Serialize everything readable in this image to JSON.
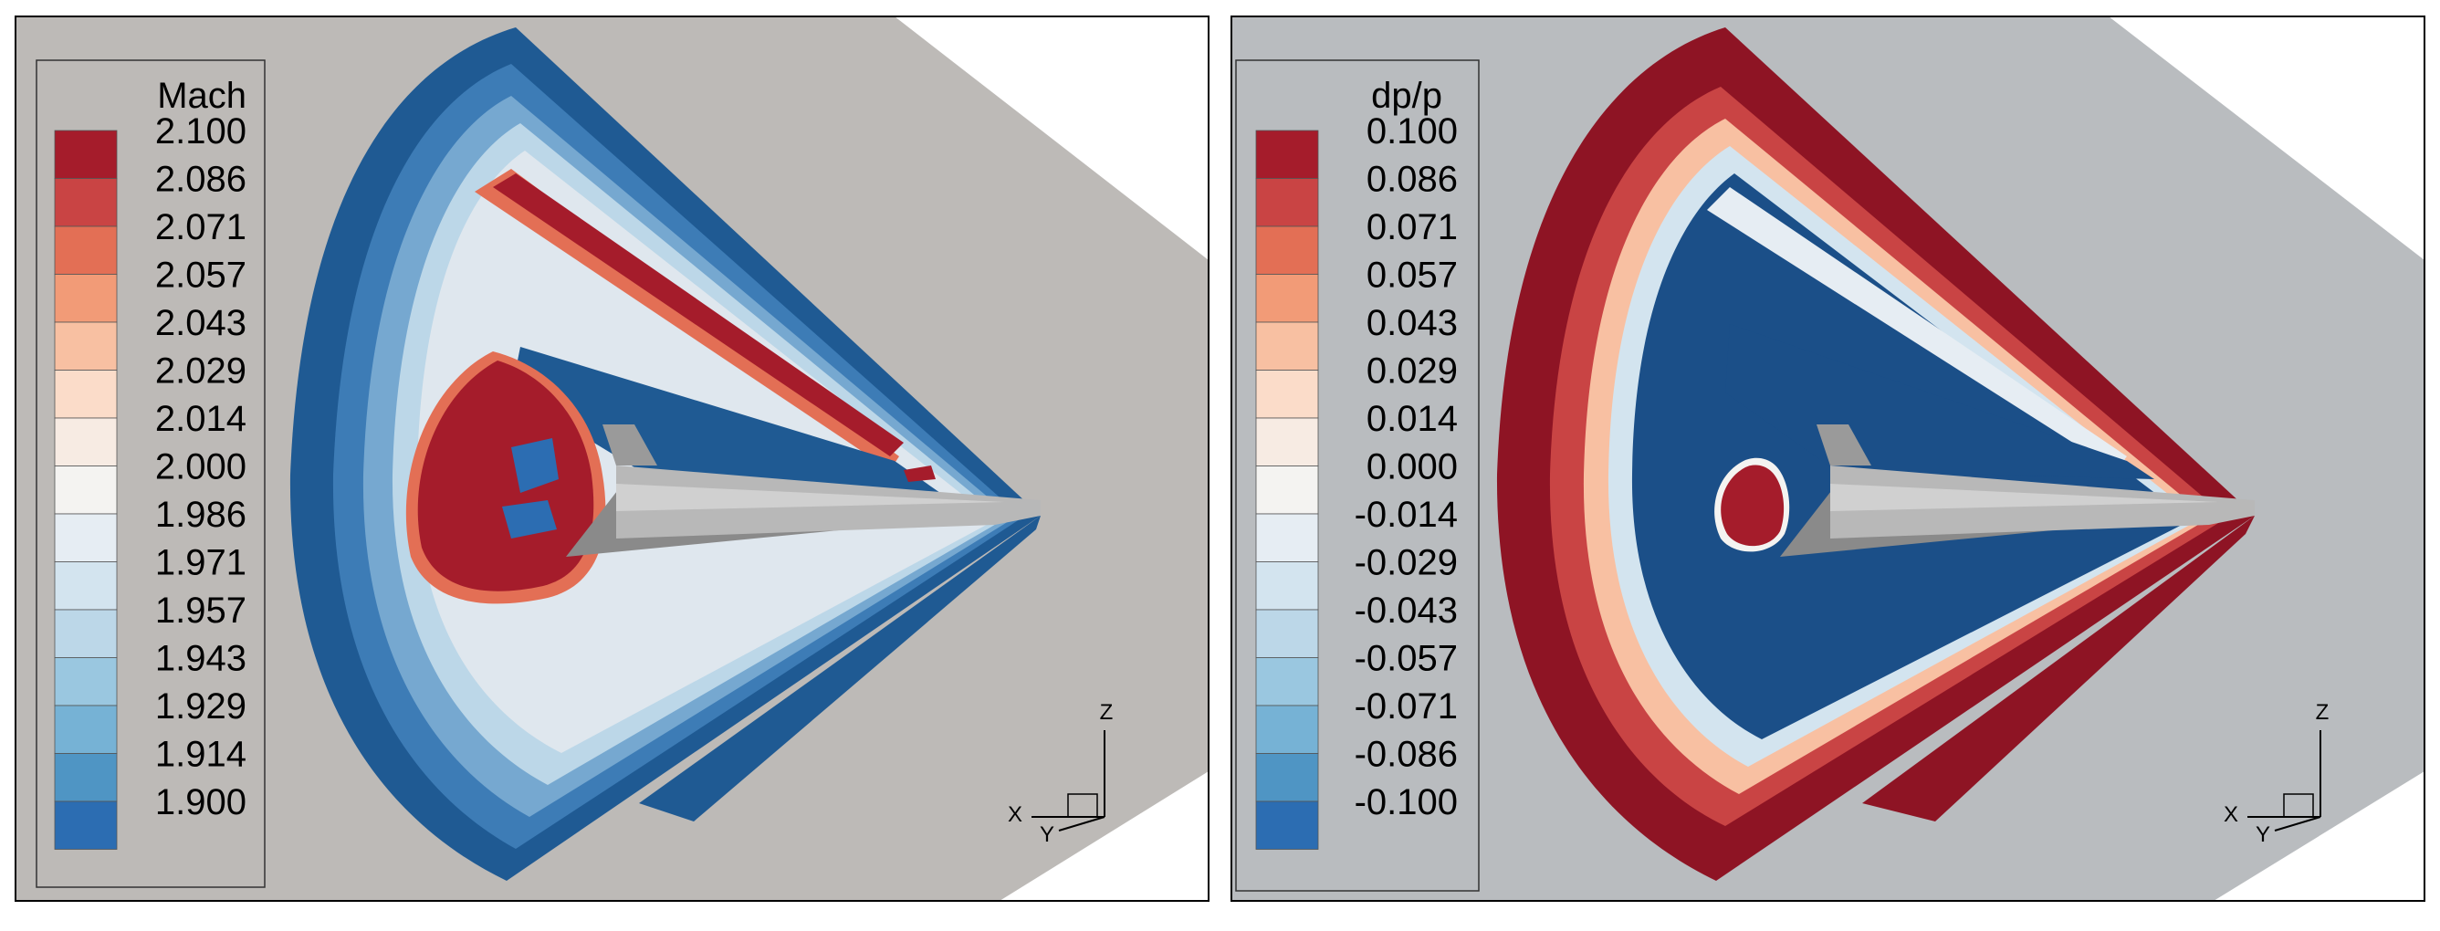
{
  "chart_data": [
    {
      "type": "contour",
      "variable": "Mach",
      "legend_title": "Mach",
      "levels": [
        "2.100",
        "2.086",
        "2.071",
        "2.057",
        "2.043",
        "2.029",
        "2.014",
        "2.000",
        "1.986",
        "1.971",
        "1.957",
        "1.943",
        "1.929",
        "1.914",
        "1.900"
      ],
      "background_color": "#bdbab7",
      "axes": {
        "z": "Z",
        "x": "X",
        "y": "Y"
      }
    },
    {
      "type": "contour",
      "variable": "dp/p",
      "legend_title": "dp/p",
      "levels": [
        "0.100",
        "0.086",
        "0.071",
        "0.057",
        "0.043",
        "0.029",
        "0.014",
        "0.000",
        "-0.014",
        "-0.029",
        "-0.043",
        "-0.057",
        "-0.071",
        "-0.086",
        "-0.100"
      ],
      "background_color": "#b9bcbf",
      "axes": {
        "z": "Z",
        "x": "X",
        "y": "Y"
      }
    }
  ],
  "palette": [
    "#a51c2b",
    "#c94444",
    "#e36f55",
    "#f29b77",
    "#f8c0a2",
    "#fbdcc9",
    "#f7ebe3",
    "#f4f3f1",
    "#e6edf3",
    "#d3e4ef",
    "#bcd7e8",
    "#9ac7e0",
    "#76b2d5",
    "#4f95c4",
    "#2c6db2"
  ],
  "deep_red": "#8e1424",
  "deep_blue": "#1b4f88"
}
